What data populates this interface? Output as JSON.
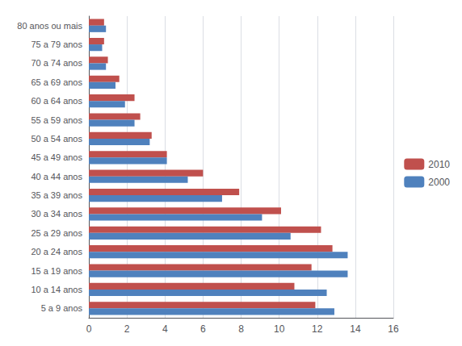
{
  "chart_data": {
    "type": "bar",
    "orientation": "horizontal",
    "categories": [
      "5 a 9 anos",
      "10 a 14 anos",
      "15 a 19 anos",
      "20 a 24 anos",
      "25 a 29 anos",
      "30 a 34 anos",
      "35 a 39 anos",
      "40 a 44 anos",
      "45 a 49 anos",
      "50 a 54 anos",
      "55 a 59 anos",
      "60 a 64 anos",
      "65 a 69 anos",
      "70 a 74 anos",
      "75 a 79 anos",
      "80 anos ou mais"
    ],
    "series": [
      {
        "name": "2010",
        "color": "#C0504D",
        "values": [
          11.9,
          10.8,
          11.7,
          12.8,
          12.2,
          10.1,
          7.9,
          6.0,
          4.1,
          3.3,
          2.7,
          2.4,
          1.6,
          1.0,
          0.8,
          0.8
        ]
      },
      {
        "name": "2000",
        "color": "#4F81BD",
        "values": [
          12.9,
          12.5,
          13.6,
          13.6,
          10.6,
          9.1,
          7.0,
          5.2,
          4.1,
          3.2,
          2.4,
          1.9,
          1.4,
          0.9,
          0.7,
          0.9
        ]
      }
    ],
    "xlim": [
      0,
      16
    ],
    "xticks": [
      0,
      2,
      4,
      6,
      8,
      10,
      12,
      14,
      16
    ],
    "grid": true,
    "legend": "right"
  }
}
